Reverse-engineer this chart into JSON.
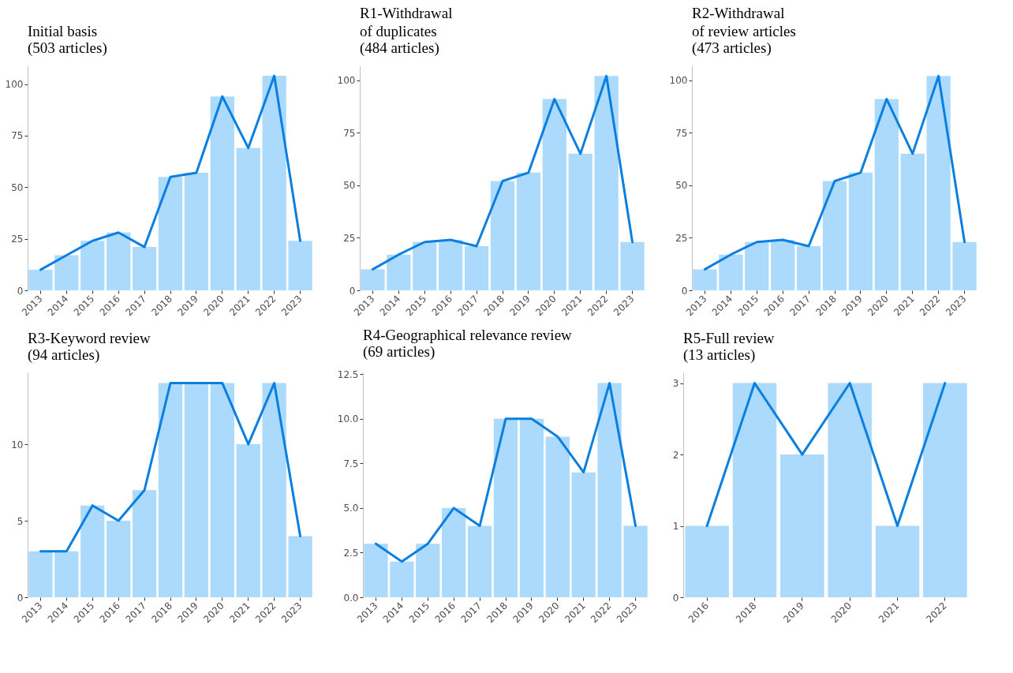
{
  "chart_data": [
    {
      "type": "bar",
      "title": "Initial basis",
      "subtitle": "(503 articles)",
      "categories": [
        "2013",
        "2014",
        "2015",
        "2016",
        "2017",
        "2018",
        "2019",
        "2020",
        "2021",
        "2022",
        "2023"
      ],
      "ylim": [
        0,
        109
      ],
      "yticks": [
        0,
        25,
        50,
        75,
        100
      ],
      "series": [
        {
          "type": "bar",
          "color": "#acdafc",
          "values": [
            10,
            17,
            24,
            28,
            21,
            55,
            57,
            94,
            69,
            104,
            24
          ]
        },
        {
          "type": "line",
          "color": "#0a7fe0",
          "values": [
            10,
            17,
            24,
            28,
            21,
            55,
            57,
            94,
            69,
            104,
            24
          ]
        }
      ]
    },
    {
      "type": "bar",
      "title": "R1-Withdrawal\nof duplicates",
      "subtitle": "(484 articles)",
      "categories": [
        "2013",
        "2014",
        "2015",
        "2016",
        "2017",
        "2018",
        "2019",
        "2020",
        "2021",
        "2022",
        "2023"
      ],
      "ylim": [
        0,
        107
      ],
      "yticks": [
        0,
        25,
        50,
        75,
        100
      ],
      "series": [
        {
          "type": "bar",
          "color": "#acdafc",
          "values": [
            10,
            17,
            23,
            24,
            21,
            52,
            56,
            91,
            65,
            102,
            23
          ]
        },
        {
          "type": "line",
          "color": "#0a7fe0",
          "values": [
            10,
            17,
            23,
            24,
            21,
            52,
            56,
            91,
            65,
            102,
            23
          ]
        }
      ]
    },
    {
      "type": "bar",
      "title": "R2-Withdrawal\nof review articles",
      "subtitle": "(473 articles)",
      "categories": [
        "2013",
        "2014",
        "2015",
        "2016",
        "2017",
        "2018",
        "2019",
        "2020",
        "2021",
        "2022",
        "2023"
      ],
      "ylim": [
        0,
        107
      ],
      "yticks": [
        0,
        25,
        50,
        75,
        100
      ],
      "series": [
        {
          "type": "bar",
          "color": "#acdafc",
          "values": [
            10,
            17,
            23,
            24,
            21,
            52,
            56,
            91,
            65,
            102,
            23
          ]
        },
        {
          "type": "line",
          "color": "#0a7fe0",
          "values": [
            10,
            17,
            23,
            24,
            21,
            52,
            56,
            91,
            65,
            102,
            23
          ]
        }
      ]
    },
    {
      "type": "bar",
      "title": "R3-Keyword review",
      "subtitle": "(94 articles)",
      "categories": [
        "2013",
        "2014",
        "2015",
        "2016",
        "2017",
        "2018",
        "2019",
        "2020",
        "2021",
        "2022",
        "2023"
      ],
      "ylim": [
        0,
        14.7
      ],
      "yticks": [
        0,
        5,
        10
      ],
      "series": [
        {
          "type": "bar",
          "color": "#acdafc",
          "values": [
            3,
            3,
            6,
            5,
            7,
            14,
            14,
            14,
            10,
            14,
            4
          ]
        },
        {
          "type": "line",
          "color": "#0a7fe0",
          "values": [
            3,
            3,
            6,
            5,
            7,
            14,
            14,
            14,
            10,
            14,
            4
          ]
        }
      ]
    },
    {
      "type": "bar",
      "title": "R4-Geographical relevance review",
      "subtitle": "(69 articles)",
      "categories": [
        "2013",
        "2014",
        "2015",
        "2016",
        "2017",
        "2018",
        "2019",
        "2020",
        "2021",
        "2022",
        "2023"
      ],
      "ylim": [
        0,
        12.6
      ],
      "yticks": [
        {
          "value": 0,
          "label": "0.0"
        },
        2.5,
        {
          "value": 5,
          "label": "5.0"
        },
        7.5,
        {
          "value": 10,
          "label": "10.0"
        },
        12.5
      ],
      "series": [
        {
          "type": "bar",
          "color": "#acdafc",
          "values": [
            3,
            2,
            3,
            5,
            4,
            10,
            10,
            9,
            7,
            12,
            4
          ]
        },
        {
          "type": "line",
          "color": "#0a7fe0",
          "values": [
            3,
            2,
            3,
            5,
            4,
            10,
            10,
            9,
            7,
            12,
            4
          ]
        }
      ]
    },
    {
      "type": "bar",
      "title": "R5-Full review",
      "subtitle": "(13 articles)",
      "categories": [
        "2016",
        "2018",
        "2019",
        "2020",
        "2021",
        "2022"
      ],
      "ylim": [
        0,
        3.15
      ],
      "yticks": [
        0,
        1,
        2,
        3
      ],
      "series": [
        {
          "type": "bar",
          "color": "#acdafc",
          "values": [
            1,
            3,
            2,
            3,
            1,
            3
          ]
        },
        {
          "type": "line",
          "color": "#0a7fe0",
          "values": [
            1,
            3,
            2,
            3,
            1,
            3
          ]
        }
      ]
    }
  ]
}
